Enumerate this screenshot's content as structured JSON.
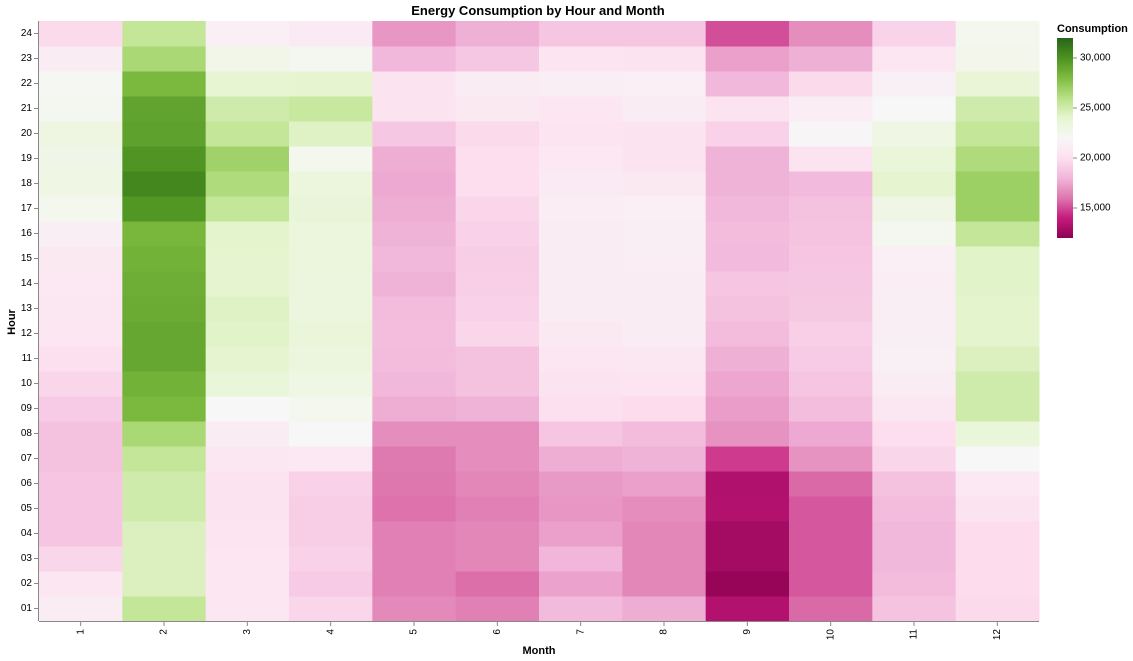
{
  "chart_data": {
    "type": "heatmap",
    "title": "Energy Consumption by Hour and Month",
    "xlabel": "Month",
    "ylabel": "Hour",
    "x_categories": [
      "1",
      "2",
      "3",
      "4",
      "5",
      "6",
      "7",
      "8",
      "9",
      "10",
      "11",
      "12"
    ],
    "y_categories": [
      "01",
      "02",
      "03",
      "04",
      "05",
      "06",
      "07",
      "08",
      "09",
      "10",
      "11",
      "12",
      "13",
      "14",
      "15",
      "16",
      "17",
      "18",
      "19",
      "20",
      "21",
      "22",
      "23",
      "24"
    ],
    "values": [
      [
        21000,
        25500,
        20500,
        19500,
        16600,
        16300,
        18200,
        17700,
        13300,
        15700,
        18600,
        19700
      ],
      [
        20500,
        24500,
        20500,
        19000,
        16300,
        15800,
        17400,
        16500,
        12300,
        15300,
        18300,
        19800
      ],
      [
        19500,
        24500,
        20500,
        19300,
        16300,
        16500,
        18000,
        16500,
        12800,
        15300,
        18100,
        19800
      ],
      [
        18700,
        24500,
        20400,
        19100,
        16300,
        16500,
        17300,
        16500,
        12800,
        15300,
        18100,
        19800
      ],
      [
        18700,
        25000,
        20300,
        19100,
        15900,
        16300,
        17000,
        16700,
        13300,
        15300,
        18300,
        20300
      ],
      [
        18700,
        25000,
        20300,
        19300,
        16000,
        16500,
        17100,
        17300,
        13200,
        15700,
        18500,
        20700
      ],
      [
        18500,
        25500,
        20600,
        20700,
        16100,
        16700,
        17700,
        17900,
        14700,
        16900,
        19500,
        22000
      ],
      [
        18500,
        26500,
        21000,
        22000,
        16700,
        16700,
        18700,
        18300,
        16900,
        17600,
        19900,
        23500
      ],
      [
        19000,
        28200,
        22000,
        22500,
        17700,
        17900,
        20000,
        19800,
        17200,
        18400,
        20600,
        25000
      ],
      [
        19500,
        28500,
        23500,
        23000,
        18100,
        18500,
        20300,
        20400,
        17500,
        18700,
        21000,
        25000
      ],
      [
        20000,
        29000,
        24000,
        23300,
        18300,
        18500,
        20500,
        20600,
        17800,
        19000,
        21400,
        24500
      ],
      [
        20500,
        29000,
        24200,
        23500,
        18400,
        19500,
        20800,
        21000,
        18300,
        19200,
        21200,
        24100
      ],
      [
        20600,
        28800,
        24300,
        23300,
        18300,
        19300,
        21000,
        21000,
        18500,
        18900,
        21200,
        24100
      ],
      [
        20700,
        28700,
        24000,
        23300,
        17900,
        19200,
        21000,
        21000,
        18700,
        18800,
        21100,
        24200
      ],
      [
        20800,
        28500,
        24000,
        23400,
        18100,
        19100,
        21000,
        21100,
        18200,
        18700,
        21300,
        24200
      ],
      [
        21200,
        28300,
        24100,
        23400,
        17900,
        19300,
        21000,
        21200,
        18300,
        18600,
        22400,
        25500
      ],
      [
        22500,
        29800,
        25500,
        23600,
        17700,
        19500,
        21100,
        21300,
        18100,
        18500,
        22900,
        27000
      ],
      [
        23000,
        30500,
        26300,
        23400,
        17600,
        19900,
        20900,
        20800,
        17900,
        18200,
        24000,
        27000
      ],
      [
        22800,
        29900,
        26800,
        22500,
        17700,
        19900,
        20700,
        20300,
        17900,
        20300,
        23500,
        26300
      ],
      [
        23100,
        29300,
        25500,
        24300,
        18800,
        19700,
        20400,
        20300,
        19300,
        21800,
        23000,
        25500
      ],
      [
        22400,
        29200,
        25000,
        25300,
        20300,
        20800,
        20500,
        21000,
        20300,
        21100,
        22000,
        25000
      ],
      [
        22200,
        28200,
        23900,
        24000,
        20300,
        21000,
        21200,
        21300,
        18100,
        19700,
        21400,
        23700
      ],
      [
        21000,
        26500,
        22700,
        22400,
        18100,
        18800,
        20400,
        20300,
        17300,
        17800,
        20500,
        22600
      ],
      [
        19700,
        25500,
        21300,
        20900,
        17000,
        17800,
        18700,
        18700,
        15100,
        16700,
        19400,
        22500
      ]
    ],
    "color_domain": [
      12000,
      32000
    ],
    "legend": {
      "title": "Consumption",
      "ticks": [
        {
          "value": 30000,
          "label": "30,000"
        },
        {
          "value": 25000,
          "label": "25,000"
        },
        {
          "value": 20000,
          "label": "20,000"
        },
        {
          "value": 15000,
          "label": "15,000"
        }
      ],
      "colors": [
        "#8e0152",
        "#c51b7d",
        "#de77ae",
        "#f1b6da",
        "#fde0ef",
        "#f7f7f7",
        "#e6f5d0",
        "#b8e186",
        "#7fbc41",
        "#4d9221",
        "#276419"
      ]
    }
  }
}
